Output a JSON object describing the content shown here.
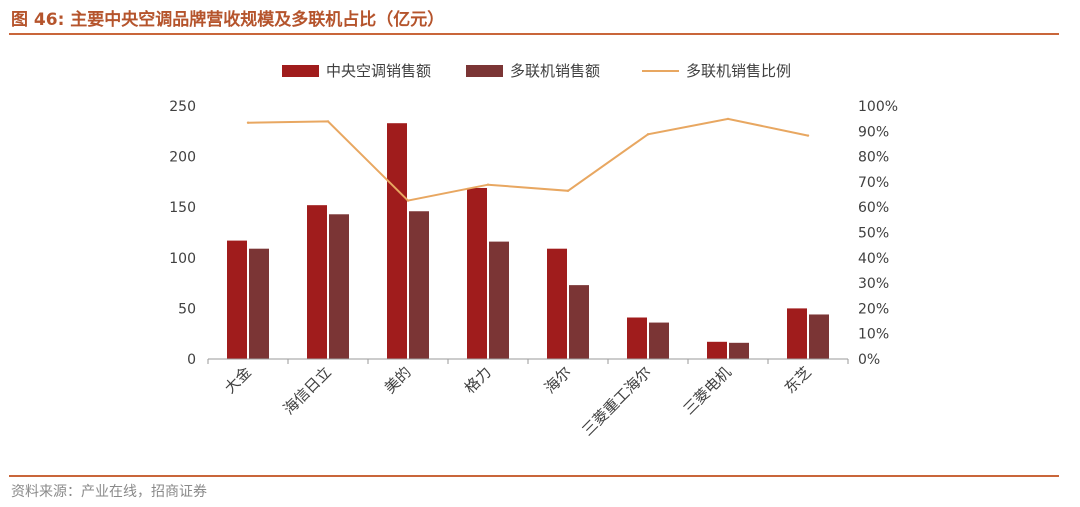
{
  "header": {
    "title": "图 46:  主要中央空调品牌营收规模及多联机占比（亿元）"
  },
  "footer": {
    "source": "资料来源：产业在线，招商证券"
  },
  "chart_data": {
    "type": "bar",
    "categories": [
      "大金",
      "海信日立",
      "美的",
      "格力",
      "海尔",
      "三菱重工海尔",
      "三菱电机",
      "东芝"
    ],
    "series": [
      {
        "name": "中央空调销售额",
        "kind": "bar",
        "axis": "left",
        "color": "#a01c1c",
        "values": [
          117,
          152,
          233,
          169,
          109,
          41,
          17,
          50
        ]
      },
      {
        "name": "多联机销售额",
        "kind": "bar",
        "axis": "left",
        "color": "#7b3535",
        "values": [
          109,
          143,
          146,
          116,
          73,
          36,
          16,
          44
        ]
      },
      {
        "name": "多联机销售比例",
        "kind": "line",
        "axis": "right",
        "color": "#e8a761",
        "values": [
          93.4,
          93.9,
          62.6,
          68.9,
          66.5,
          88.8,
          94.9,
          88.3
        ]
      }
    ],
    "yaxis_left": {
      "min": 0,
      "max": 250,
      "ticks": [
        "0",
        "50",
        "100",
        "150",
        "200",
        "250"
      ]
    },
    "yaxis_right": {
      "min": 0,
      "max": 100,
      "ticks": [
        "0%",
        "10%",
        "20%",
        "30%",
        "40%",
        "50%",
        "60%",
        "70%",
        "80%",
        "90%",
        "100%"
      ]
    },
    "legend_position": "top-center",
    "grid": false,
    "xlabel": "",
    "ylabel": ""
  }
}
